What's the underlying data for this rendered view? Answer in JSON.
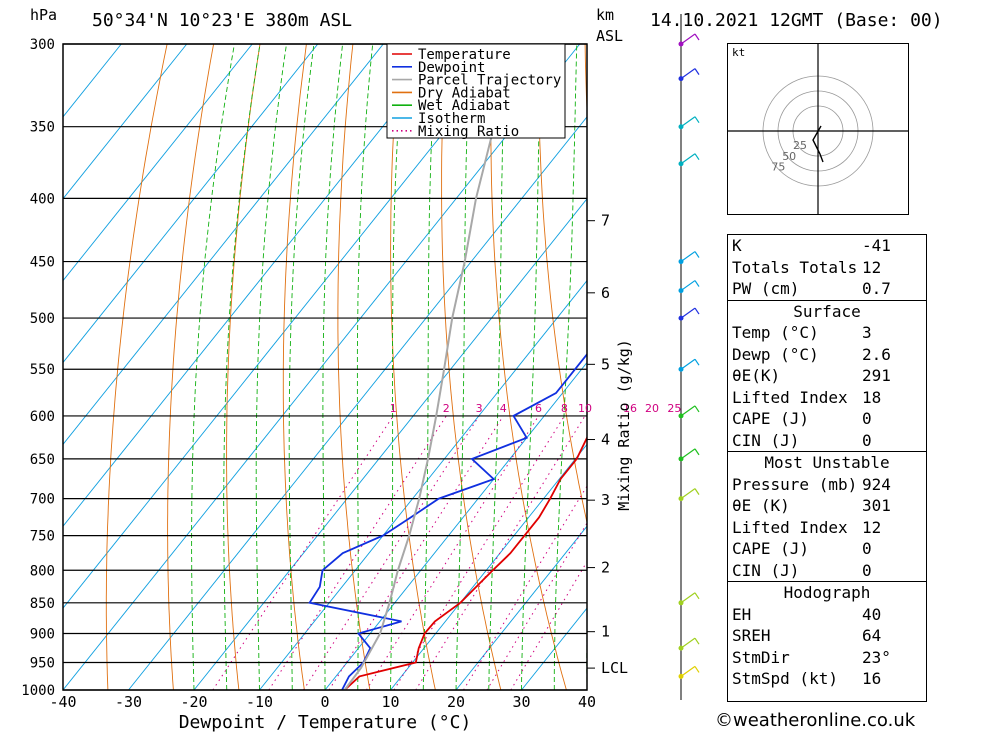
{
  "header": {
    "location": "50°34'N  10°23'E  380m  ASL",
    "datetime": "14.10.2021  12GMT  (Base: 00)",
    "pressure_unit": "hPa",
    "height_unit_top": "km",
    "height_unit_bottom": "ASL"
  },
  "legend": [
    "Temperature",
    "Dewpoint",
    "Parcel Trajectory",
    "Dry Adiabat",
    "Wet Adiabat",
    "Isotherm",
    "Mixing Ratio"
  ],
  "colors": {
    "temperature": "#e00000",
    "dewpoint": "#1030e0",
    "parcel": "#a8a8a8",
    "dry_adiabat": "#e07010",
    "wet_adiabat": "#10b010",
    "isotherm": "#10a0e0",
    "mixing_ratio": "#d00080"
  },
  "chart_data": {
    "type": "line",
    "xlabel": "Dewpoint / Temperature (°C)",
    "ylabel": "Mixing Ratio (g/kg)",
    "xlim": [
      -40,
      40
    ],
    "x_ticks": [
      -40,
      -30,
      -20,
      -10,
      0,
      10,
      20,
      30,
      40
    ],
    "pressure_levels": [
      300,
      350,
      400,
      450,
      500,
      550,
      600,
      650,
      700,
      750,
      800,
      850,
      900,
      950,
      1000
    ],
    "height_km_ticks": [
      {
        "label": "1",
        "p": 897
      },
      {
        "label": "2",
        "p": 796
      },
      {
        "label": "3",
        "p": 702
      },
      {
        "label": "4",
        "p": 627
      },
      {
        "label": "5",
        "p": 545
      },
      {
        "label": "6",
        "p": 477
      },
      {
        "label": "7",
        "p": 417
      },
      {
        "label": "LCL",
        "p": 960
      }
    ],
    "mixing_ratio_labels": [
      "1",
      "2",
      "3",
      "4",
      "6",
      "8",
      "10",
      "16",
      "20",
      "25"
    ],
    "mixing_ratio_values": [
      1,
      2,
      3,
      4,
      6,
      8,
      10,
      16,
      20,
      25
    ],
    "series": [
      {
        "name": "Temperature",
        "points": [
          [
            1000,
            3
          ],
          [
            975,
            3.6
          ],
          [
            950,
            10.5
          ],
          [
            925,
            9.2
          ],
          [
            900,
            8.3
          ],
          [
            880,
            8.4
          ],
          [
            850,
            10
          ],
          [
            825,
            10.5
          ],
          [
            800,
            11
          ],
          [
            775,
            11.6
          ],
          [
            750,
            11.6
          ],
          [
            725,
            11.6
          ],
          [
            700,
            11
          ],
          [
            675,
            10.2
          ],
          [
            650,
            10.2
          ],
          [
            625,
            9.2
          ],
          [
            600,
            8.0
          ],
          [
            575,
            7.5
          ],
          [
            550,
            5
          ],
          [
            525,
            3
          ],
          [
            500,
            -1
          ],
          [
            475,
            -4
          ],
          [
            450,
            -7
          ],
          [
            425,
            -10.5
          ],
          [
            400,
            -14
          ],
          [
            375,
            -18.5
          ],
          [
            350,
            -23
          ],
          [
            325,
            -28
          ],
          [
            300,
            -34.5
          ]
        ]
      },
      {
        "name": "Dewpoint",
        "points": [
          [
            1000,
            2.6
          ],
          [
            975,
            2.0
          ],
          [
            950,
            2.5
          ],
          [
            925,
            1.8
          ],
          [
            900,
            -1.8
          ],
          [
            880,
            3.3
          ],
          [
            850,
            -13
          ],
          [
            825,
            -13.4
          ],
          [
            800,
            -15
          ],
          [
            775,
            -14
          ],
          [
            750,
            -10
          ],
          [
            725,
            -8
          ],
          [
            700,
            -6
          ],
          [
            675,
            0
          ],
          [
            650,
            -5.8
          ],
          [
            625,
            0
          ],
          [
            600,
            -4.7
          ],
          [
            575,
            -1
          ],
          [
            550,
            -1
          ],
          [
            525,
            -1
          ],
          [
            500,
            -2.5
          ],
          [
            475,
            -4
          ],
          [
            450,
            2.5
          ],
          [
            425,
            -0.2
          ],
          [
            400,
            -3
          ],
          [
            375,
            -1
          ],
          [
            350,
            2
          ],
          [
            325,
            4
          ],
          [
            300,
            -1
          ]
        ]
      },
      {
        "name": "Parcel Trajectory",
        "points": [
          [
            1000,
            3
          ],
          [
            960,
            2.8
          ],
          [
            900,
            1.5
          ],
          [
            850,
            -0.8
          ],
          [
            800,
            -3.5
          ],
          [
            750,
            -6
          ],
          [
            700,
            -9
          ],
          [
            650,
            -12.5
          ],
          [
            600,
            -16.5
          ],
          [
            550,
            -21
          ],
          [
            500,
            -26
          ],
          [
            450,
            -31
          ],
          [
            400,
            -37
          ],
          [
            350,
            -43
          ],
          [
            300,
            -50
          ]
        ]
      }
    ]
  },
  "hodograph": {
    "unit": "kt",
    "rings": [
      "25",
      "50",
      "75"
    ]
  },
  "indices": {
    "k_label": "K",
    "k": "-41",
    "tt_label": "Totals Totals",
    "tt": "12",
    "pw_label": "PW (cm)",
    "pw": "0.7",
    "surface": {
      "title": "Surface",
      "temp_label": "Temp (°C)",
      "temp": "3",
      "dewp_label": "Dewp (°C)",
      "dewp": "2.6",
      "theta_label": "θE(K)",
      "theta": "291",
      "li_label": "Lifted Index",
      "li": "18",
      "cape_label": "CAPE (J)",
      "cape": "0",
      "cin_label": "CIN (J)",
      "cin": "0"
    },
    "most_unstable": {
      "title": "Most Unstable",
      "pres_label": "Pressure (mb)",
      "pres": "924",
      "theta_label": "θE (K)",
      "theta": "301",
      "li_label": "Lifted Index",
      "li": "12",
      "cape_label": "CAPE (J)",
      "cape": "0",
      "cin_label": "CIN (J)",
      "cin": "0"
    },
    "hodograph": {
      "title": "Hodograph",
      "eh_label": "EH",
      "eh": "40",
      "sreh_label": "SREH",
      "sreh": "64",
      "stmdir_label": "StmDir",
      "stmdir": "23°",
      "stmspd_label": "StmSpd (kt)",
      "stmspd": "16"
    }
  },
  "copyright": "©weatheronline.co.uk"
}
